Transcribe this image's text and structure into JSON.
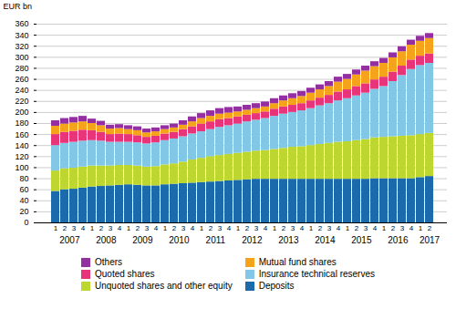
{
  "chart_data": {
    "type": "bar",
    "stacked": true,
    "ylabel": "EUR bn",
    "categories": [
      "1",
      "2",
      "3",
      "4",
      "1",
      "2",
      "3",
      "4",
      "1",
      "2",
      "3",
      "4",
      "1",
      "2",
      "3",
      "4",
      "1",
      "2",
      "3",
      "4",
      "1",
      "2",
      "3",
      "4",
      "1",
      "2",
      "3",
      "4",
      "1",
      "2",
      "3",
      "4",
      "1",
      "2",
      "3",
      "4",
      "1",
      "2",
      "3",
      "4",
      "1",
      "2"
    ],
    "series": [
      {
        "name": "Deposits",
        "color": "#1B6AAB",
        "values": [
          57,
          60,
          61,
          63,
          65,
          66,
          67,
          68,
          69,
          68,
          67,
          67,
          69,
          70,
          71,
          72,
          73,
          74,
          75,
          76,
          77,
          78,
          79,
          79,
          79,
          79,
          79,
          79,
          79,
          79,
          79,
          79,
          79,
          79,
          79,
          80,
          80,
          80,
          80,
          80,
          82,
          84
        ]
      },
      {
        "name": "Unquoted shares and other equity",
        "color": "#BDD630",
        "values": [
          37,
          38,
          38,
          38,
          38,
          37,
          36,
          36,
          35,
          35,
          34,
          35,
          36,
          37,
          39,
          42,
          44,
          46,
          47,
          48,
          49,
          50,
          51,
          52,
          54,
          56,
          58,
          59,
          61,
          63,
          65,
          67,
          68,
          70,
          72,
          74,
          75,
          76,
          77,
          78,
          78,
          78
        ]
      },
      {
        "name": "Insurance technical reserves",
        "color": "#82C8E6",
        "values": [
          46,
          46,
          47,
          47,
          46,
          45,
          43,
          42,
          42,
          42,
          42,
          43,
          44,
          45,
          46,
          47,
          48,
          49,
          51,
          52,
          53,
          55,
          56,
          58,
          60,
          62,
          63,
          65,
          67,
          70,
          72,
          75,
          78,
          81,
          84,
          88,
          92,
          100,
          110,
          120,
          125,
          127
        ]
      },
      {
        "name": "Quoted shares",
        "color": "#E8357A",
        "values": [
          20,
          20,
          20,
          20,
          18,
          16,
          14,
          15,
          14,
          13,
          12,
          12,
          12,
          12,
          13,
          13,
          14,
          14,
          14,
          13,
          13,
          12,
          12,
          12,
          13,
          13,
          13,
          13,
          14,
          14,
          15,
          16,
          16,
          17,
          17,
          17,
          17,
          17,
          17,
          17,
          17,
          17
        ]
      },
      {
        "name": "Mutual fund shares",
        "color": "#F5A31A",
        "values": [
          15,
          15,
          15,
          15,
          13,
          12,
          10,
          10,
          9,
          9,
          8,
          8,
          8,
          8,
          8,
          9,
          10,
          10,
          10,
          10,
          9,
          9,
          9,
          9,
          10,
          11,
          12,
          13,
          14,
          15,
          16,
          18,
          19,
          21,
          23,
          24,
          25,
          26,
          26,
          27,
          27,
          28
        ]
      },
      {
        "name": "Others",
        "color": "#932FA0",
        "values": [
          10,
          10,
          10,
          10,
          8,
          8,
          7,
          7,
          7,
          7,
          7,
          7,
          7,
          7,
          8,
          9,
          9,
          10,
          10,
          10,
          9,
          9,
          9,
          9,
          9,
          9,
          9,
          9,
          9,
          9,
          9,
          9,
          9,
          9,
          9,
          9,
          9,
          9,
          9,
          9,
          9,
          9
        ]
      }
    ],
    "annotations": [
      {
        "text": "2007",
        "x": 1.5
      },
      {
        "text": "2008",
        "x": 5.5
      },
      {
        "text": "2009",
        "x": 9.5
      },
      {
        "text": "2010",
        "x": 13.5
      },
      {
        "text": "2011",
        "x": 17.5
      },
      {
        "text": "2012",
        "x": 21.5
      },
      {
        "text": "2013",
        "x": 25.5
      },
      {
        "text": "2014",
        "x": 29.5
      },
      {
        "text": "2015",
        "x": 33.5
      },
      {
        "text": "2016",
        "x": 37.5
      },
      {
        "text": "2017",
        "x": 41.0
      }
    ],
    "ylim": [
      0,
      360
    ],
    "yticks": [
      0,
      20,
      40,
      60,
      80,
      100,
      120,
      140,
      160,
      180,
      200,
      220,
      240,
      260,
      280,
      300,
      320,
      340,
      360
    ],
    "grid": true,
    "legend": "bottom"
  }
}
